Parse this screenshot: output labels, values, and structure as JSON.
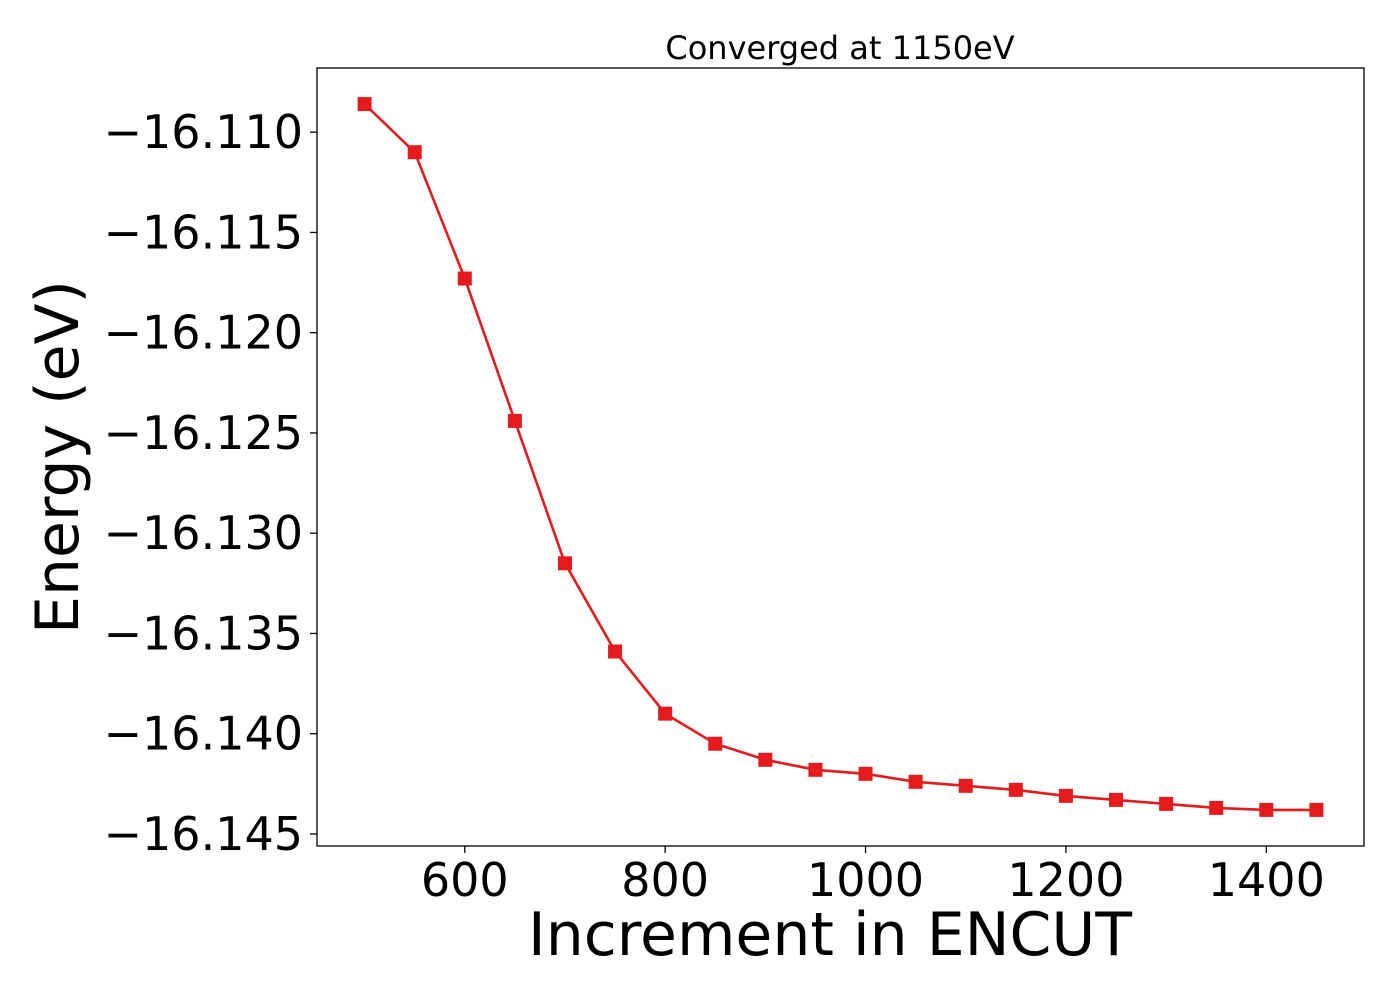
{
  "chart_data": {
    "type": "line",
    "title": "Converged at 1150eV",
    "xlabel": "Increment in ENCUT",
    "ylabel": "Energy (eV)",
    "xlim": [
      452.5,
      1497.5
    ],
    "ylim": [
      -16.1456,
      -16.1068
    ],
    "xticks": [
      600,
      800,
      1000,
      1200,
      1400
    ],
    "xtick_labels": [
      "600",
      "800",
      "1000",
      "1200",
      "1400"
    ],
    "yticks": [
      -16.11,
      -16.115,
      -16.12,
      -16.125,
      -16.13,
      -16.135,
      -16.14,
      -16.145
    ],
    "ytick_labels": [
      "−16.110",
      "−16.115",
      "−16.120",
      "−16.125",
      "−16.130",
      "−16.135",
      "−16.140",
      "−16.145"
    ],
    "grid": false,
    "marker": "square",
    "color": "#e41a1c",
    "series": [
      {
        "x": [
          500,
          550,
          600,
          650,
          700,
          750,
          800,
          850,
          900,
          950,
          1000,
          1050,
          1100,
          1150,
          1200,
          1250,
          1300,
          1350,
          1400,
          1450
        ],
        "y": [
          -16.1086,
          -16.111,
          -16.1173,
          -16.1244,
          -16.1315,
          -16.1359,
          -16.139,
          -16.1405,
          -16.1413,
          -16.1418,
          -16.142,
          -16.1424,
          -16.1426,
          -16.1428,
          -16.1431,
          -16.1433,
          -16.1435,
          -16.1437,
          -16.1438,
          -16.1438
        ]
      }
    ]
  }
}
